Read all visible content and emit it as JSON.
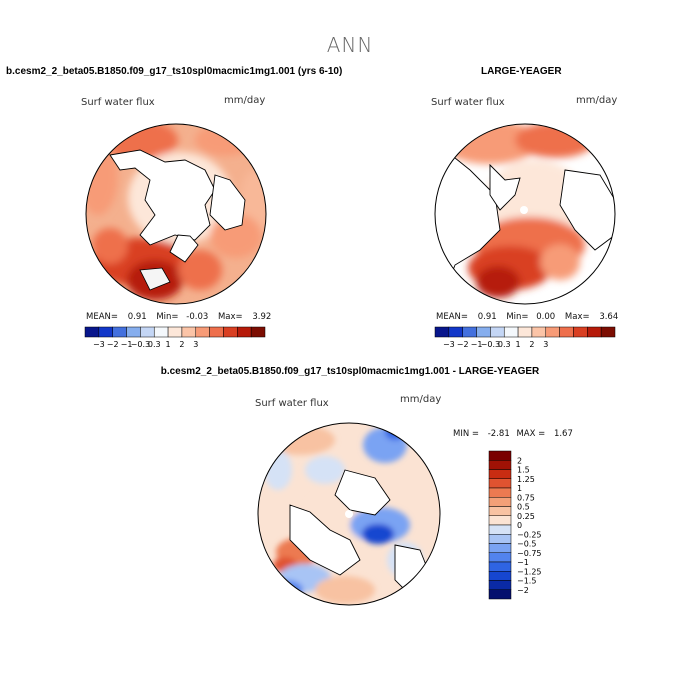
{
  "figure": {
    "title": "ANN",
    "panels": {
      "left": {
        "case_title": "b.cesm2_2_beta05.B1850.f09_g17_ts10spl0macmic1mg1.001 (yrs 6-10)",
        "field_label": "Surf water flux",
        "units": "mm/day",
        "stats": {
          "mean_label": "MEAN=",
          "mean_value": "0.91",
          "min_label": "Min=",
          "min_value": "-0.03",
          "max_label": "Max=",
          "max_value": "3.92"
        }
      },
      "right": {
        "case_title": "LARGE-YEAGER",
        "field_label": "Surf water flux",
        "units": "mm/day",
        "stats": {
          "mean_label": "MEAN=",
          "mean_value": "0.91",
          "min_label": "Min=",
          "min_value": "0.00",
          "max_label": "Max=",
          "max_value": "3.64"
        }
      },
      "diff": {
        "case_title": "b.cesm2_2_beta05.B1850.f09_g17_ts10spl0macmic1mg1.001 - LARGE-YEAGER",
        "field_label": "Surf water flux",
        "units": "mm/day",
        "stats": {
          "min_label": "MIN =",
          "min_value": "-2.81",
          "max_label": "MAX =",
          "max_value": "1.67"
        }
      }
    },
    "colors": {
      "land": "#ffffff",
      "background": "#ffffff"
    }
  },
  "chart_data": [
    {
      "type": "heatmap",
      "projection": "north-polar-stereographic",
      "title": "Surf water flux",
      "units": "mm/day",
      "colorbar": {
        "orientation": "horizontal",
        "levels": [
          -3,
          -2,
          -1,
          -0.3,
          0.3,
          1,
          2,
          3
        ],
        "tick_labels": [
          "−3",
          "−2",
          "−1",
          "−0.3",
          "0.3",
          "1",
          "2",
          "3"
        ],
        "colors": [
          "#08168c",
          "#1237c9",
          "#4370de",
          "#86aeee",
          "#c4d6f5",
          "#f4f8fc",
          "#fde7d9",
          "#fbc4a7",
          "#f79b77",
          "#ee6f4c",
          "#d93f22",
          "#b61a09",
          "#7c0d02"
        ]
      },
      "stats": {
        "mean": 0.91,
        "min": -0.03,
        "max": 3.92
      }
    },
    {
      "type": "heatmap",
      "projection": "north-polar-stereographic",
      "title": "Surf water flux",
      "units": "mm/day",
      "colorbar": {
        "orientation": "horizontal",
        "levels": [
          -3,
          -2,
          -1,
          -0.3,
          0.3,
          1,
          2,
          3
        ],
        "tick_labels": [
          "−3",
          "−2",
          "−1",
          "−0.3",
          "0.3",
          "1",
          "2",
          "3"
        ],
        "colors": [
          "#08168c",
          "#1237c9",
          "#4370de",
          "#86aeee",
          "#c4d6f5",
          "#f4f8fc",
          "#fde7d9",
          "#fbc4a7",
          "#f79b77",
          "#ee6f4c",
          "#d93f22",
          "#b61a09",
          "#7c0d02"
        ]
      },
      "stats": {
        "mean": 0.91,
        "min": 0.0,
        "max": 3.64
      }
    },
    {
      "type": "heatmap",
      "projection": "north-polar-stereographic",
      "title": "Surf water flux",
      "units": "mm/day",
      "colorbar": {
        "orientation": "vertical",
        "levels": [
          -2,
          -1.5,
          -1.25,
          -1,
          -0.75,
          -0.5,
          -0.25,
          0,
          0.25,
          0.5,
          0.75,
          1,
          1.25,
          1.5,
          2
        ],
        "tick_labels": [
          "−2",
          "−1.5",
          "−1.25",
          "−1",
          "−0.75",
          "−0.5",
          "−0.25",
          "0",
          "0.25",
          "0.5",
          "0.75",
          "1",
          "1.25",
          "1.5",
          "2"
        ],
        "colors": [
          "#040f6e",
          "#0a2aa6",
          "#1646d0",
          "#2f64e3",
          "#5283ee",
          "#7aa3f3",
          "#a8c4f5",
          "#d5e2f6",
          "#fbe3d3",
          "#f8c2a2",
          "#f3a078",
          "#ec7a51",
          "#e05330",
          "#c82c12",
          "#a11205",
          "#7a0000"
        ]
      },
      "stats": {
        "min": -2.81,
        "max": 1.67
      }
    }
  ]
}
